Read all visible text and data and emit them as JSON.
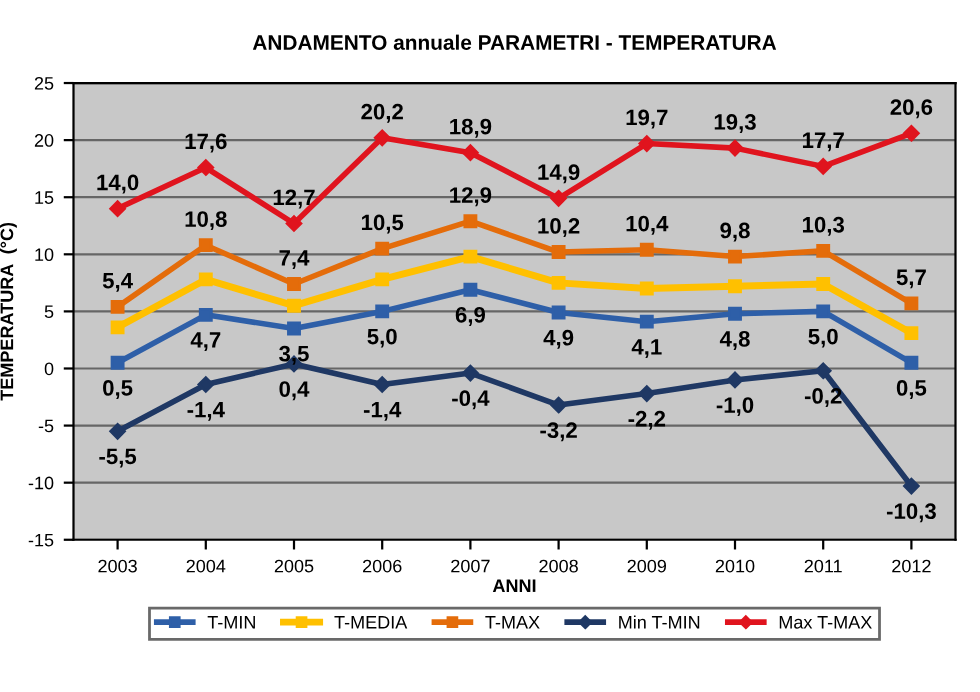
{
  "chart_data": {
    "type": "line",
    "title": "ANDAMENTO annuale PARAMETRI - TEMPERATURA",
    "xlabel": "ANNI",
    "ylabel": "TEMPERATURA  (°C)",
    "categories": [
      "2003",
      "2004",
      "2005",
      "2006",
      "2007",
      "2008",
      "2009",
      "2010",
      "2011",
      "2012"
    ],
    "ylim": [
      -15,
      25
    ],
    "yticks": [
      -15,
      -10,
      -5,
      0,
      5,
      10,
      15,
      20,
      25
    ],
    "grid": "y",
    "legend": "bottom",
    "line_style": "solid",
    "series": [
      {
        "name": "T-MIN",
        "color": "#2e5fa8",
        "marker": "square",
        "values": [
          0.5,
          4.7,
          3.5,
          5.0,
          6.9,
          4.9,
          4.1,
          4.8,
          5.0,
          0.5
        ],
        "value_labels": [
          "0,5",
          "4,7",
          "3,5",
          "5,0",
          "6,9",
          "4,9",
          "4,1",
          "4,8",
          "5,0",
          "0,5"
        ]
      },
      {
        "name": "T-MEDIA",
        "color": "#ffc000",
        "marker": "square",
        "values": [
          3.6,
          7.8,
          5.5,
          7.8,
          9.8,
          7.5,
          7.0,
          7.2,
          7.4,
          3.1
        ]
      },
      {
        "name": "T-MAX",
        "color": "#e46c0a",
        "marker": "square",
        "values": [
          5.4,
          10.8,
          7.4,
          10.5,
          12.9,
          10.2,
          10.4,
          9.8,
          10.3,
          5.7
        ],
        "value_labels": [
          "5,4",
          "10,8",
          "7,4",
          "10,5",
          "12,9",
          "10,2",
          "10,4",
          "9,8",
          "10,3",
          "5,7"
        ]
      },
      {
        "name": "Min T-MIN",
        "color": "#1f3864",
        "marker": "diamond",
        "values": [
          -5.5,
          -1.4,
          0.4,
          -1.4,
          -0.4,
          -3.2,
          -2.2,
          -1.0,
          -0.2,
          -10.3
        ],
        "value_labels": [
          "-5,5",
          "-1,4",
          "0,4",
          "-1,4",
          "-0,4",
          "-3,2",
          "-2,2",
          "-1,0",
          "-0,2",
          "-10,3"
        ]
      },
      {
        "name": "Max T-MAX",
        "color": "#e0141e",
        "marker": "diamond",
        "values": [
          14.0,
          17.6,
          12.7,
          20.2,
          18.9,
          14.9,
          19.7,
          19.3,
          17.7,
          20.6
        ],
        "value_labels": [
          "14,0",
          "17,6",
          "12,7",
          "20,2",
          "18,9",
          "14,9",
          "19,7",
          "19,3",
          "17,7",
          "20,6"
        ]
      }
    ]
  }
}
